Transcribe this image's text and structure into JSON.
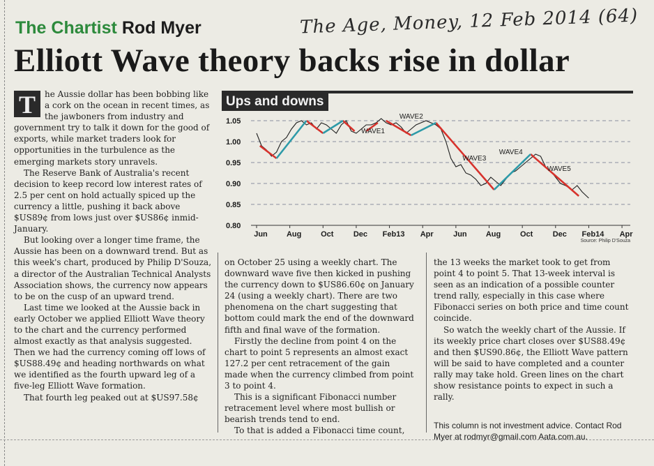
{
  "header": {
    "column_name": "The Chartist",
    "author": "Rod Myer",
    "handwritten_note": "The Age, Money, 12 Feb 2014 (64)",
    "headline": "Elliott Wave theory backs rise in dollar"
  },
  "article": {
    "dropcap": "T",
    "col1": [
      "he Aussie dollar has been bobbing like a cork on the ocean in recent times, as the jawboners from industry and government try to talk it down for the good of exports, while market traders look for opportunities in the turbulence as the emerging markets story unravels.",
      "The Reserve Bank of Australia's recent decision to keep record low interest rates of 2.5 per cent on hold actually spiced up the currency a little, pushing it back above $US89¢ from lows just over $US86¢ inmid-January.",
      "But looking over a longer time frame, the Aussie has been on a downward trend. But as this week's chart, produced by Philip D'Souza, a director of the Australian Technical Analysts Association shows, the currency now appears to be on the cusp of an upward trend.",
      "Last time we looked at the Aussie back in early October we applied Elliott Wave theory to the chart and the currency performed almost exactly as that analysis suggested. Then we had the currency coming off lows of $US88.49¢ and heading northwards on what we identified as the fourth upward leg of a five-leg Elliott Wave formation.",
      "That fourth leg peaked out at $US97.58¢"
    ],
    "col2": [
      "on October 25 using a weekly chart. The downward wave five then kicked in pushing the currency down to $US86.60¢ on January 24 (using a weekly chart). There are two phenomena on the chart suggesting that bottom could mark the end of the downward fifth and final wave of the formation.",
      "Firstly the decline from point 4 on the chart to point 5 represents an almost exact 127.2 per cent retracement of the gain made when the currency climbed from point 3 to point 4.",
      "This is a significant Fibonacci number retracement level where most bullish or bearish trends tend to end.",
      "To that is added a Fibonacci time count,"
    ],
    "col3": [
      "the 13 weeks the market took to get from point 4 to point 5. That 13-week interval is seen as an indication of a possible counter trend rally, especially in this case where Fibonacci series on both price and time count coincide.",
      "So watch the weekly chart of the Aussie. If its weekly price chart closes over $US88.49¢ and then $US90.86¢, the Elliott Wave pattern will be said to have completed and a counter rally may take hold. Green lines on the chart show resistance points to expect in such a rally."
    ],
    "disclaimer": "This column is not investment advice. Contact Rod Myer at rodmyr@gmail.com Aata.com.au."
  },
  "chart_data": {
    "type": "line",
    "title": "Ups and downs",
    "source": "Source: Philip D'Souza",
    "x_ticks": [
      "Jun",
      "Aug",
      "Oct",
      "Dec",
      "Feb13",
      "Apr",
      "Jun",
      "Aug",
      "Oct",
      "Dec",
      "Feb14",
      "Apr"
    ],
    "y_ticks": [
      "1.05",
      "1.00",
      "0.95",
      "0.90",
      "0.85",
      "0.80"
    ],
    "ylim": [
      0.8,
      1.05
    ],
    "grid": "horizontal dashed",
    "x_unit": "months from Jun 2012",
    "price": {
      "x": [
        0,
        0.3,
        0.6,
        0.9,
        1.2,
        1.5,
        1.8,
        2.1,
        2.4,
        2.7,
        3.0,
        3.3,
        3.6,
        3.9,
        4.2,
        4.5,
        4.8,
        5.1,
        5.4,
        5.7,
        6.0,
        6.3,
        6.6,
        6.9,
        7.2,
        7.5,
        7.8,
        8.1,
        8.4,
        8.7,
        9.0,
        9.3,
        9.6,
        9.9,
        10.2,
        10.5,
        10.8,
        11.1,
        11.4,
        11.7,
        12.0,
        12.3,
        12.6,
        12.9,
        13.2,
        13.5,
        13.8,
        14.1,
        14.4,
        14.7,
        15.0,
        15.3,
        15.6,
        15.9,
        16.2,
        16.5,
        16.8,
        17.1,
        17.4,
        17.7,
        18.0,
        18.3,
        18.6,
        19.0,
        19.3,
        19.6,
        20.0
      ],
      "y": [
        1.02,
        0.99,
        0.98,
        0.965,
        0.975,
        1.0,
        1.01,
        1.03,
        1.045,
        1.05,
        1.04,
        1.045,
        1.03,
        1.045,
        1.04,
        1.03,
        1.02,
        1.04,
        1.05,
        1.025,
        1.02,
        1.03,
        1.04,
        1.04,
        1.045,
        1.055,
        1.045,
        1.04,
        1.045,
        1.035,
        1.02,
        1.03,
        1.04,
        1.045,
        1.05,
        1.045,
        1.04,
        1.03,
        1.0,
        0.96,
        0.94,
        0.945,
        0.925,
        0.92,
        0.91,
        0.895,
        0.9,
        0.915,
        0.905,
        0.895,
        0.91,
        0.925,
        0.93,
        0.94,
        0.95,
        0.96,
        0.97,
        0.965,
        0.94,
        0.93,
        0.915,
        0.9,
        0.895,
        0.885,
        0.895,
        0.88,
        0.865
      ]
    },
    "red_segments": [
      [
        [
          0.2,
          0.99
        ],
        [
          1.2,
          0.96
        ]
      ],
      [
        [
          3.0,
          1.05
        ],
        [
          4.0,
          1.02
        ]
      ],
      [
        [
          5.2,
          1.05
        ],
        [
          5.9,
          1.025
        ]
      ],
      [
        [
          6.6,
          1.025
        ],
        [
          7.3,
          1.045
        ]
      ],
      [
        [
          7.8,
          1.05
        ],
        [
          9.3,
          1.015
        ]
      ],
      [
        [
          10.8,
          1.045
        ],
        [
          14.3,
          0.885
        ]
      ],
      [
        [
          16.5,
          0.97
        ],
        [
          19.4,
          0.87
        ]
      ]
    ],
    "teal_segments": [
      [
        [
          1.2,
          0.96
        ],
        [
          3.0,
          1.05
        ]
      ],
      [
        [
          4.0,
          1.02
        ],
        [
          5.2,
          1.05
        ]
      ],
      [
        [
          9.3,
          1.015
        ],
        [
          10.8,
          1.045
        ]
      ],
      [
        [
          14.3,
          0.885
        ],
        [
          16.5,
          0.97
        ]
      ]
    ],
    "labels": [
      {
        "text": "WAVE1",
        "x": 6.3,
        "y": 1.02
      },
      {
        "text": "WAVE2",
        "x": 8.6,
        "y": 1.055
      },
      {
        "text": "WAVE3",
        "x": 12.4,
        "y": 0.955
      },
      {
        "text": "WAVE4",
        "x": 14.6,
        "y": 0.97
      },
      {
        "text": "WAVE5",
        "x": 17.5,
        "y": 0.93
      }
    ],
    "colors": {
      "price": "#1e1e1e",
      "red": "#d7322c",
      "teal": "#2d9aa8",
      "grid": "#8a8fa0"
    }
  }
}
